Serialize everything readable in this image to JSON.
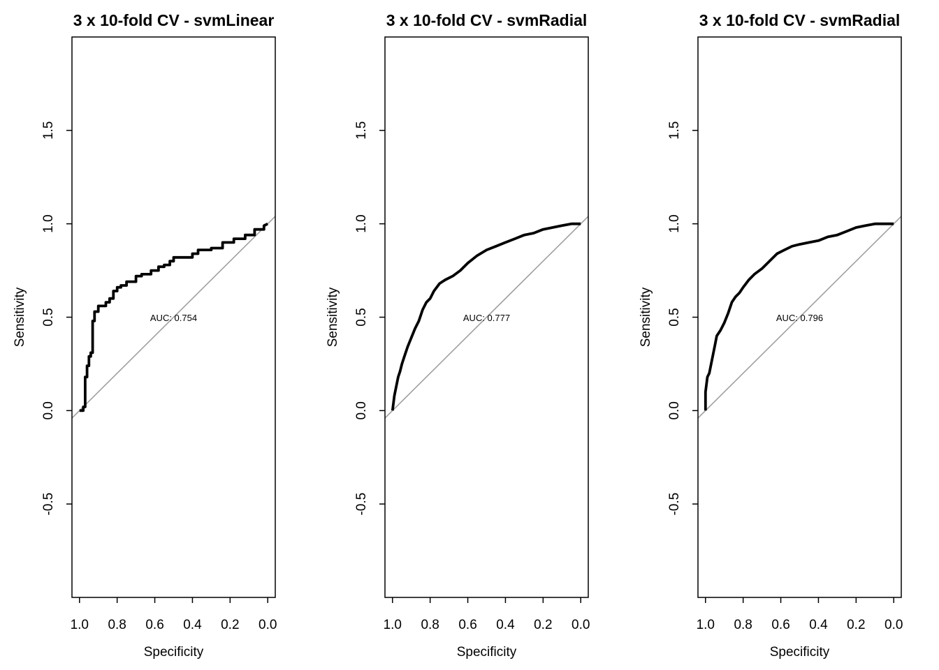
{
  "figure": {
    "background_color": "#ffffff"
  },
  "chart_data": [
    {
      "type": "line",
      "title": "3 x 10-fold CV - svmLinear",
      "xlabel": "Specificity",
      "ylabel": "Sensitivity",
      "x_reversed": true,
      "xlim": [
        1.04,
        -0.04
      ],
      "ylim": [
        -1.0,
        2.0
      ],
      "xticks": [
        1.0,
        0.8,
        0.6,
        0.4,
        0.2,
        0.0
      ],
      "xtick_labels": [
        "1.0",
        "0.8",
        "0.6",
        "0.4",
        "0.2",
        "0.0"
      ],
      "yticks": [
        -0.5,
        0.0,
        0.5,
        1.0,
        1.5
      ],
      "ytick_labels": [
        "-0.5",
        "0.0",
        "0.5",
        "1.0",
        "1.5"
      ],
      "grid": false,
      "auc_label": "AUC: 0.754",
      "auc_position": {
        "specificity": 0.5,
        "sensitivity": 0.48
      },
      "reference_line": {
        "color": "#a0a0a0",
        "description": "sensitivity = 1 - specificity"
      },
      "curve_color": "#000000",
      "series": [
        {
          "specificity": [
            1.0,
            0.98,
            0.98,
            0.97,
            0.97,
            0.96,
            0.96,
            0.95,
            0.95,
            0.94,
            0.94,
            0.93,
            0.93,
            0.92,
            0.92,
            0.9,
            0.9,
            0.86,
            0.86,
            0.84,
            0.84,
            0.82,
            0.82,
            0.8,
            0.8,
            0.78,
            0.78,
            0.75,
            0.75,
            0.7,
            0.7,
            0.67,
            0.67,
            0.62,
            0.62,
            0.58,
            0.58,
            0.55,
            0.55,
            0.52,
            0.52,
            0.5,
            0.5,
            0.4,
            0.4,
            0.37,
            0.37,
            0.3,
            0.3,
            0.24,
            0.24,
            0.18,
            0.18,
            0.12,
            0.12,
            0.07,
            0.07,
            0.02,
            0.02,
            0.0
          ],
          "sensitivity": [
            0.0,
            0.0,
            0.02,
            0.02,
            0.18,
            0.18,
            0.24,
            0.24,
            0.29,
            0.29,
            0.31,
            0.31,
            0.48,
            0.48,
            0.53,
            0.53,
            0.56,
            0.56,
            0.58,
            0.58,
            0.6,
            0.6,
            0.64,
            0.64,
            0.66,
            0.66,
            0.67,
            0.67,
            0.69,
            0.69,
            0.72,
            0.72,
            0.73,
            0.73,
            0.75,
            0.75,
            0.77,
            0.77,
            0.78,
            0.78,
            0.8,
            0.8,
            0.82,
            0.82,
            0.84,
            0.84,
            0.86,
            0.86,
            0.87,
            0.87,
            0.9,
            0.9,
            0.92,
            0.92,
            0.94,
            0.94,
            0.97,
            0.97,
            0.99,
            1.0
          ]
        }
      ]
    },
    {
      "type": "line",
      "title": "3 x 10-fold CV - svmRadial",
      "xlabel": "Specificity",
      "ylabel": "Sensitivity",
      "x_reversed": true,
      "xlim": [
        1.04,
        -0.04
      ],
      "ylim": [
        -1.0,
        2.0
      ],
      "xticks": [
        1.0,
        0.8,
        0.6,
        0.4,
        0.2,
        0.0
      ],
      "xtick_labels": [
        "1.0",
        "0.8",
        "0.6",
        "0.4",
        "0.2",
        "0.0"
      ],
      "yticks": [
        -0.5,
        0.0,
        0.5,
        1.0,
        1.5
      ],
      "ytick_labels": [
        "-0.5",
        "0.0",
        "0.5",
        "1.0",
        "1.5"
      ],
      "grid": false,
      "auc_label": "AUC: 0.777",
      "auc_position": {
        "specificity": 0.5,
        "sensitivity": 0.48
      },
      "reference_line": {
        "color": "#a0a0a0",
        "description": "sensitivity = 1 - specificity"
      },
      "curve_color": "#000000",
      "series": [
        {
          "specificity": [
            1.0,
            0.99,
            0.98,
            0.97,
            0.96,
            0.95,
            0.94,
            0.92,
            0.9,
            0.88,
            0.86,
            0.84,
            0.82,
            0.8,
            0.78,
            0.75,
            0.72,
            0.68,
            0.64,
            0.6,
            0.55,
            0.5,
            0.45,
            0.4,
            0.35,
            0.3,
            0.25,
            0.2,
            0.15,
            0.1,
            0.05,
            0.02,
            0.0
          ],
          "sensitivity": [
            0.0,
            0.08,
            0.13,
            0.18,
            0.21,
            0.25,
            0.28,
            0.34,
            0.39,
            0.44,
            0.48,
            0.54,
            0.58,
            0.6,
            0.64,
            0.68,
            0.7,
            0.72,
            0.75,
            0.79,
            0.83,
            0.86,
            0.88,
            0.9,
            0.92,
            0.94,
            0.95,
            0.97,
            0.98,
            0.99,
            1.0,
            1.0,
            1.0
          ]
        }
      ]
    },
    {
      "type": "line",
      "title": "3 x 10-fold CV - svmRadial",
      "xlabel": "Specificity",
      "ylabel": "Sensitivity",
      "x_reversed": true,
      "xlim": [
        1.04,
        -0.04
      ],
      "ylim": [
        -1.0,
        2.0
      ],
      "xticks": [
        1.0,
        0.8,
        0.6,
        0.4,
        0.2,
        0.0
      ],
      "xtick_labels": [
        "1.0",
        "0.8",
        "0.6",
        "0.4",
        "0.2",
        "0.0"
      ],
      "yticks": [
        -0.5,
        0.0,
        0.5,
        1.0,
        1.5
      ],
      "ytick_labels": [
        "-0.5",
        "0.0",
        "0.5",
        "1.0",
        "1.5"
      ],
      "grid": false,
      "auc_label": "AUC: 0.796",
      "auc_position": {
        "specificity": 0.5,
        "sensitivity": 0.48
      },
      "reference_line": {
        "color": "#a0a0a0",
        "description": "sensitivity = 1 - specificity"
      },
      "curve_color": "#000000",
      "series": [
        {
          "specificity": [
            1.0,
            1.0,
            0.99,
            0.98,
            0.97,
            0.96,
            0.95,
            0.94,
            0.92,
            0.9,
            0.88,
            0.86,
            0.84,
            0.82,
            0.8,
            0.77,
            0.74,
            0.7,
            0.66,
            0.62,
            0.58,
            0.54,
            0.5,
            0.45,
            0.4,
            0.35,
            0.3,
            0.25,
            0.2,
            0.15,
            0.1,
            0.05,
            0.0
          ],
          "sensitivity": [
            0.0,
            0.1,
            0.18,
            0.2,
            0.25,
            0.3,
            0.35,
            0.4,
            0.43,
            0.47,
            0.52,
            0.58,
            0.61,
            0.63,
            0.66,
            0.7,
            0.73,
            0.76,
            0.8,
            0.84,
            0.86,
            0.88,
            0.89,
            0.9,
            0.91,
            0.93,
            0.94,
            0.96,
            0.98,
            0.99,
            1.0,
            1.0,
            1.0
          ]
        }
      ]
    }
  ]
}
